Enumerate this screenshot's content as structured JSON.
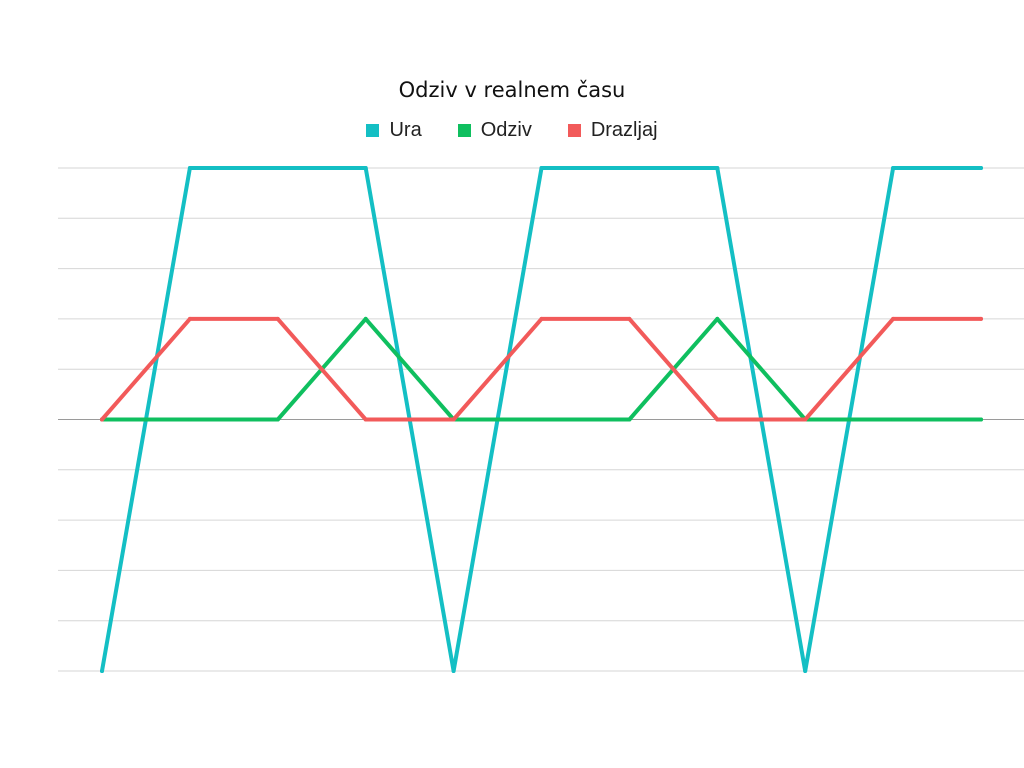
{
  "chart_data": {
    "type": "line",
    "title": "Odziv v realnem času",
    "xlabel": "",
    "ylabel": "",
    "x": [
      0,
      1,
      2,
      3,
      4,
      5,
      6,
      7,
      8,
      9,
      10
    ],
    "ylim": [
      -5,
      5
    ],
    "yticks": [
      -5,
      -4,
      -3,
      -2,
      -1,
      0,
      1,
      2,
      3,
      4,
      5
    ],
    "grid": true,
    "legend": "top-center",
    "series": [
      {
        "name": "Ura",
        "color": "#14bfc4",
        "values": [
          -5,
          5,
          5,
          5,
          -5,
          5,
          5,
          5,
          -5,
          5,
          5
        ]
      },
      {
        "name": "Odziv",
        "color": "#0fbf5f",
        "values": [
          0,
          0,
          0,
          2,
          0,
          0,
          0,
          2,
          0,
          0,
          0
        ]
      },
      {
        "name": "Drazljaj",
        "color": "#f25a5a",
        "values": [
          0,
          2,
          2,
          0,
          0,
          2,
          2,
          0,
          0,
          2,
          2
        ]
      }
    ]
  }
}
